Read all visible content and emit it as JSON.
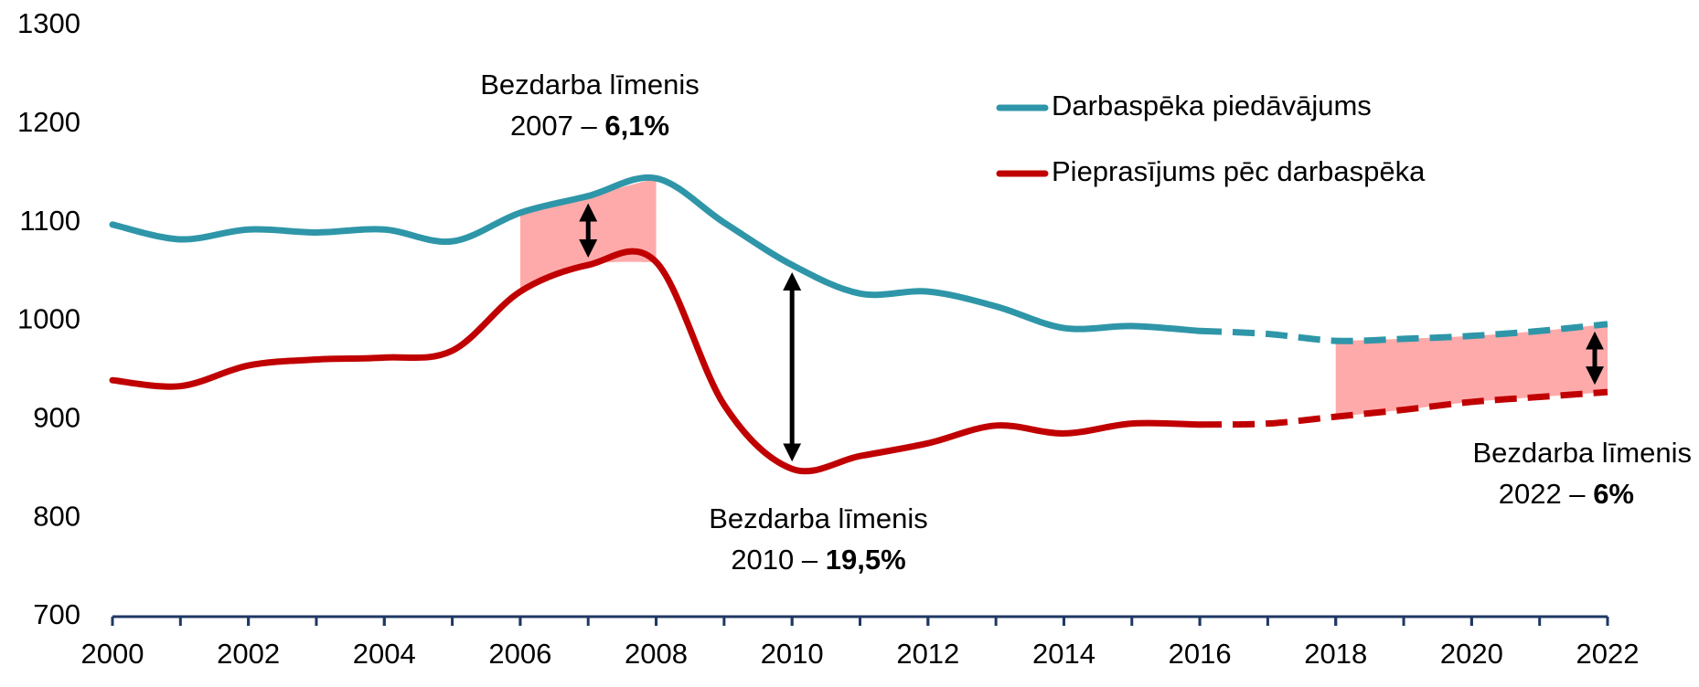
{
  "chart_data": {
    "type": "line",
    "x": [
      2000,
      2001,
      2002,
      2003,
      2004,
      2005,
      2006,
      2007,
      2008,
      2009,
      2010,
      2011,
      2012,
      2013,
      2014,
      2015,
      2016,
      2017,
      2018,
      2019,
      2020,
      2021,
      2022
    ],
    "series": [
      {
        "name": "Darbaspēka piedāvājums",
        "color": "#2e96a8",
        "values": [
          1098,
          1083,
          1093,
          1090,
          1093,
          1081,
          1110,
          1127,
          1145,
          1100,
          1057,
          1028,
          1030,
          1015,
          993,
          995,
          990,
          987,
          980,
          982,
          985,
          990,
          997
        ]
      },
      {
        "name": "Pieprasījums pēc darbaspēka",
        "color": "#c00000",
        "values": [
          940,
          934,
          955,
          961,
          963,
          970,
          1030,
          1057,
          1060,
          915,
          850,
          863,
          876,
          894,
          886,
          896,
          895,
          896,
          903,
          910,
          918,
          923,
          928
        ]
      }
    ],
    "dashed_from": 2016,
    "shaded_ranges": [
      [
        2006,
        2008
      ],
      [
        2018,
        2022
      ]
    ],
    "shade_color": "#ffaaaa",
    "gap_arrows": [
      2007,
      2010,
      2022
    ],
    "xlim": [
      2000,
      2022
    ],
    "xticks": [
      2000,
      2002,
      2004,
      2006,
      2008,
      2010,
      2012,
      2014,
      2016,
      2018,
      2020,
      2022
    ],
    "ylim": [
      700,
      1300
    ],
    "yticks": [
      700,
      800,
      900,
      1000,
      1100,
      1200,
      1300
    ],
    "annotations": [
      {
        "line1": "Bezdarba līmenis",
        "line2": "2007 –",
        "bold": "6,1%"
      },
      {
        "line1": "Bezdarba līmenis",
        "line2": "2010  –",
        "bold": "19,5%"
      },
      {
        "line1": "Bezdarba līmenis",
        "line2": "2022 –",
        "bold": "6%"
      }
    ]
  }
}
